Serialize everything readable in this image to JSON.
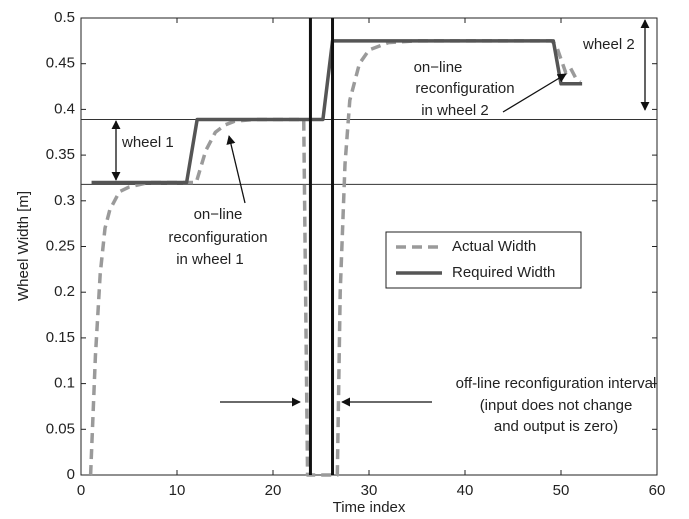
{
  "chart_data": {
    "type": "line",
    "xlabel": "Time index",
    "ylabel": "Wheel Width [m]",
    "xlim": [
      0,
      60
    ],
    "xticks": [
      0,
      10,
      20,
      30,
      40,
      50,
      60
    ],
    "ylim": [
      0,
      0.5
    ],
    "yticks": [
      0,
      0.05,
      0.1,
      0.15,
      0.2,
      0.25,
      0.3,
      0.35,
      0.4,
      0.45,
      0.5
    ],
    "series": [
      {
        "name": "Actual Width",
        "color": "#9a9a9a",
        "dashed": true,
        "x": [
          1,
          1.5,
          2,
          2.5,
          3,
          4,
          5,
          7,
          12,
          13,
          14,
          15,
          16,
          18,
          23.2,
          23.6,
          26.7,
          27,
          27.5,
          28,
          29,
          30,
          32,
          35,
          49,
          49.5,
          50,
          50.5,
          51,
          51.5,
          52
        ],
        "values": [
          0,
          0.13,
          0.22,
          0.27,
          0.29,
          0.31,
          0.315,
          0.32,
          0.32,
          0.355,
          0.375,
          0.383,
          0.387,
          0.389,
          0.389,
          0,
          0,
          0.2,
          0.34,
          0.41,
          0.45,
          0.465,
          0.473,
          0.475,
          0.475,
          0.47,
          0.455,
          0.44,
          0.445,
          0.435,
          0.43
        ]
      },
      {
        "name": "Required Width",
        "color": "#555555",
        "dashed": false,
        "x": [
          1.1,
          11,
          12.1,
          25.2,
          26.2,
          49.2,
          50,
          52.2
        ],
        "values": [
          0.32,
          0.32,
          0.389,
          0.389,
          0.475,
          0.475,
          0.428,
          0.428
        ]
      }
    ],
    "vlines": [
      23.9,
      26.2
    ],
    "hlines": [
      0.389,
      0.318
    ],
    "legend": "center-right",
    "annotations": [
      {
        "lines": [
          "wheel 1"
        ]
      },
      {
        "lines": [
          "on−line",
          "reconfiguration",
          "in wheel 1"
        ]
      },
      {
        "lines": [
          "wheel 2"
        ]
      },
      {
        "lines": [
          "on−line",
          "reconfiguration",
          "in wheel 2"
        ]
      },
      {
        "lines": [
          "off-line reconfiguration interval",
          "(input does not change",
          "and output is zero)"
        ]
      }
    ]
  }
}
